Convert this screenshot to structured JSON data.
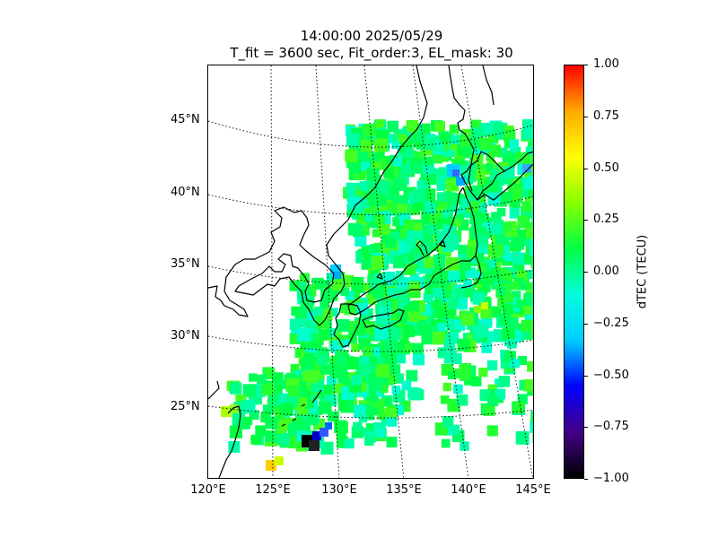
{
  "title": {
    "time": "14:00:00 2025/05/29",
    "params": "T_fit = 3600 sec, Fit_order:3, EL_mask: 30"
  },
  "map": {
    "lat_labels": [
      "45°N",
      "40°N",
      "35°N",
      "30°N",
      "25°N"
    ],
    "lon_labels": [
      "120°E",
      "125°E",
      "130°E",
      "135°E",
      "140°E",
      "145°E"
    ],
    "extent": {
      "lon": [
        120,
        145
      ],
      "lat": [
        20,
        49
      ]
    },
    "colors": {
      "coastline": "#000000",
      "grid": "#000000",
      "background": "#ffffff"
    }
  },
  "colorbar": {
    "label": "dTEC (TECU)",
    "ticks": [
      "1.00",
      "0.75",
      "0.50",
      "0.25",
      "0.00",
      "−0.25",
      "−0.50",
      "−0.75",
      "−1.00"
    ],
    "range": [
      -1.0,
      1.0
    ],
    "colormap": [
      "#000000",
      "#440088",
      "#0000ff",
      "#00ccff",
      "#00ffdd",
      "#00ff44",
      "#88ff00",
      "#ffff00",
      "#ffaa00",
      "#ff0000"
    ]
  }
}
